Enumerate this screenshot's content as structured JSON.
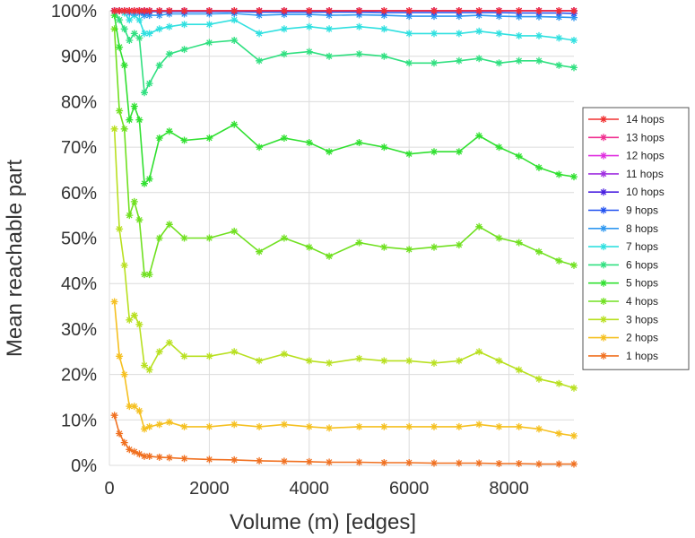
{
  "chart_data": {
    "type": "line",
    "title": "",
    "xlabel": "Volume (m) [edges]",
    "ylabel": "Mean reachable part",
    "xlim": [
      0,
      9300
    ],
    "ylim": [
      0,
      100
    ],
    "x_ticks": [
      0,
      2000,
      4000,
      6000,
      8000
    ],
    "x_tick_labels": [
      "0",
      "2000",
      "4000",
      "6000",
      "8000"
    ],
    "y_ticks": [
      0,
      10,
      20,
      30,
      40,
      50,
      60,
      70,
      80,
      90,
      100
    ],
    "y_tick_labels": [
      "0%",
      "10%",
      "20%",
      "30%",
      "40%",
      "50%",
      "60%",
      "70%",
      "80%",
      "90%",
      "100%"
    ],
    "grid": true,
    "legend_position": "right",
    "legend_order": [
      "14 hops",
      "13 hops",
      "12 hops",
      "11 hops",
      "10 hops",
      "9 hops",
      "8 hops",
      "7 hops",
      "6 hops",
      "5 hops",
      "4 hops",
      "3 hops",
      "2 hops",
      "1 hops"
    ],
    "x": [
      100,
      200,
      300,
      400,
      500,
      600,
      700,
      800,
      1000,
      1200,
      1500,
      2000,
      2500,
      3000,
      3500,
      4000,
      4400,
      5000,
      5500,
      6000,
      6500,
      7000,
      7400,
      7800,
      8200,
      8600,
      9000,
      9300
    ],
    "series": [
      {
        "name": "1 hops",
        "color": "#f07020",
        "values": [
          11,
          7,
          5,
          3.5,
          3,
          2.5,
          2,
          2,
          1.8,
          1.7,
          1.5,
          1.3,
          1.2,
          1.0,
          0.9,
          0.8,
          0.7,
          0.7,
          0.6,
          0.6,
          0.5,
          0.5,
          0.5,
          0.4,
          0.4,
          0.3,
          0.3,
          0.3
        ]
      },
      {
        "name": "2 hops",
        "color": "#f5c020",
        "values": [
          36,
          24,
          20,
          13,
          13,
          12,
          8,
          8.5,
          9,
          9.5,
          8.5,
          8.5,
          9,
          8.5,
          9,
          8.5,
          8.2,
          8.5,
          8.5,
          8.5,
          8.5,
          8.5,
          9,
          8.5,
          8.5,
          8,
          7,
          6.5
        ]
      },
      {
        "name": "3 hops",
        "color": "#b8e020",
        "values": [
          74,
          52,
          44,
          32,
          33,
          31,
          22,
          21,
          25,
          27,
          24,
          24,
          25,
          23,
          24.5,
          23,
          22.5,
          23.5,
          23,
          23,
          22.5,
          23,
          25,
          23,
          21,
          19,
          18,
          17
        ]
      },
      {
        "name": "4 hops",
        "color": "#70e020",
        "values": [
          96,
          78,
          74,
          55,
          58,
          54,
          42,
          42,
          50,
          53,
          50,
          50,
          51.5,
          47,
          50,
          48,
          46,
          49,
          48,
          47.5,
          48,
          48.5,
          52.5,
          50,
          49,
          47,
          45,
          44
        ]
      },
      {
        "name": "5 hops",
        "color": "#30e030",
        "values": [
          99,
          92,
          88,
          76,
          79,
          76,
          62,
          63,
          72,
          73.5,
          71.5,
          72,
          75,
          70,
          72,
          71,
          69,
          71,
          70,
          68.5,
          69,
          69,
          72.5,
          70,
          68,
          65.5,
          64,
          63.5
        ]
      },
      {
        "name": "6 hops",
        "color": "#30e080",
        "values": [
          100,
          98,
          96,
          93.5,
          95,
          94,
          82,
          84,
          88,
          90.5,
          91.5,
          93,
          93.5,
          89,
          90.5,
          91,
          90,
          90.5,
          90,
          88.5,
          88.5,
          89,
          89.5,
          88.5,
          89,
          89,
          88,
          87.5
        ]
      },
      {
        "name": "7 hops",
        "color": "#30e0e0",
        "values": [
          100,
          100,
          99.5,
          98,
          99,
          98,
          95,
          95,
          96,
          96.5,
          97,
          97,
          98,
          95,
          96,
          96.5,
          96,
          96.5,
          96,
          95,
          95,
          95,
          95.5,
          95,
          94.5,
          94.5,
          94,
          93.5
        ]
      },
      {
        "name": "8 hops",
        "color": "#3098f0",
        "values": [
          100,
          100,
          100,
          99.5,
          99.5,
          99.5,
          99,
          99,
          99,
          99.3,
          99.3,
          99.3,
          99.4,
          99,
          99.2,
          99.2,
          99,
          99.1,
          99,
          98.8,
          98.8,
          98.8,
          99,
          98.8,
          98.7,
          98.7,
          98.6,
          98.5
        ]
      },
      {
        "name": "9 hops",
        "color": "#2050f0",
        "values": [
          100,
          100,
          100,
          100,
          100,
          100,
          99.8,
          99.8,
          99.8,
          99.8,
          99.8,
          99.8,
          99.8,
          99.7,
          99.7,
          99.7,
          99.7,
          99.7,
          99.6,
          99.6,
          99.6,
          99.6,
          99.6,
          99.6,
          99.5,
          99.5,
          99.5,
          99.4
        ]
      },
      {
        "name": "10 hops",
        "color": "#4a20e0",
        "values": [
          100,
          100,
          100,
          100,
          100,
          100,
          100,
          100,
          100,
          100,
          100,
          100,
          100,
          100,
          100,
          100,
          100,
          100,
          100,
          100,
          100,
          100,
          100,
          100,
          100,
          100,
          100,
          100
        ]
      },
      {
        "name": "11 hops",
        "color": "#a030e0",
        "values": [
          100,
          100,
          100,
          100,
          100,
          100,
          100,
          100,
          100,
          100,
          100,
          100,
          100,
          100,
          100,
          100,
          100,
          100,
          100,
          100,
          100,
          100,
          100,
          100,
          100,
          100,
          100,
          100
        ]
      },
      {
        "name": "12 hops",
        "color": "#e030e0",
        "values": [
          100,
          100,
          100,
          100,
          100,
          100,
          100,
          100,
          100,
          100,
          100,
          100,
          100,
          100,
          100,
          100,
          100,
          100,
          100,
          100,
          100,
          100,
          100,
          100,
          100,
          100,
          100,
          100
        ]
      },
      {
        "name": "13 hops",
        "color": "#f03090",
        "values": [
          100,
          100,
          100,
          100,
          100,
          100,
          100,
          100,
          100,
          100,
          100,
          100,
          100,
          100,
          100,
          100,
          100,
          100,
          100,
          100,
          100,
          100,
          100,
          100,
          100,
          100,
          100,
          100
        ]
      },
      {
        "name": "14 hops",
        "color": "#f03030",
        "values": [
          100,
          100,
          100,
          100,
          100,
          100,
          100,
          100,
          100,
          100,
          100,
          100,
          100,
          100,
          100,
          100,
          100,
          100,
          100,
          100,
          100,
          100,
          100,
          100,
          100,
          100,
          100,
          100
        ]
      }
    ]
  }
}
